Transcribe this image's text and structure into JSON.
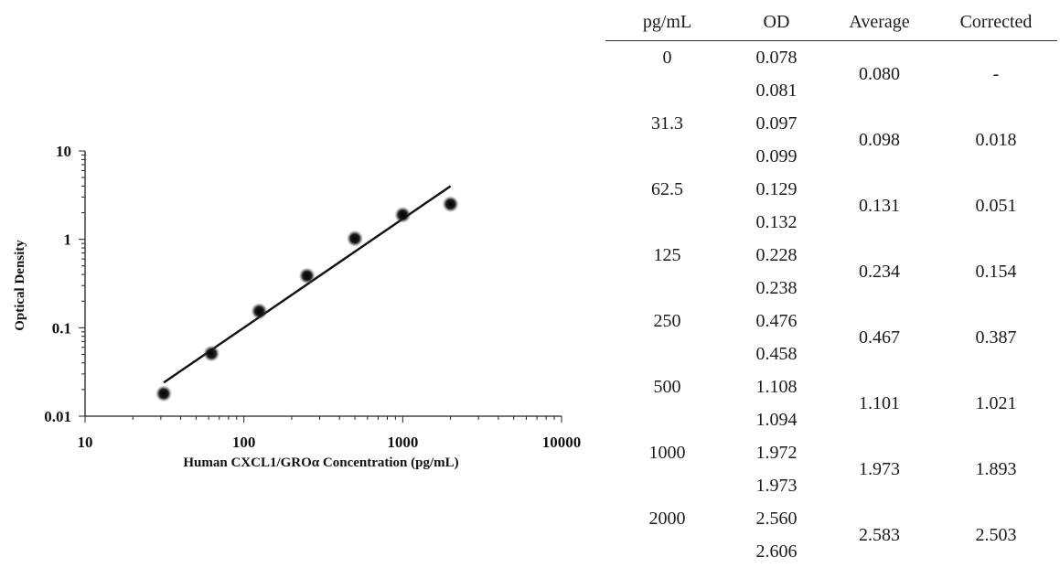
{
  "chart_data": {
    "type": "scatter",
    "title": "",
    "xlabel": "Human CXCL1/GROα Concentration (pg/mL)",
    "ylabel": "Optical Density",
    "x_scale": "log",
    "y_scale": "log",
    "xlim": [
      10,
      10000
    ],
    "ylim": [
      0.01,
      10
    ],
    "x_ticks": [
      "10",
      "100",
      "1000",
      "10000"
    ],
    "y_ticks": [
      "0.01",
      "0.1",
      "1",
      "10"
    ],
    "grid": false,
    "legend": "none",
    "series": [
      {
        "kind": "points",
        "x": [
          31.3,
          62.5,
          125,
          250,
          500,
          1000,
          2000
        ],
        "y": [
          0.018,
          0.051,
          0.154,
          0.387,
          1.021,
          1.893,
          2.503
        ]
      },
      {
        "kind": "fit-line",
        "x": [
          31.3,
          2000
        ],
        "y": [
          0.024,
          4.0
        ]
      }
    ],
    "colors": {
      "points": "#111111",
      "line": "#111111"
    }
  },
  "table": {
    "headers": [
      "pg/mL",
      "OD",
      "Average",
      "Corrected"
    ],
    "rows": [
      {
        "conc": "0",
        "od": [
          "0.078",
          "0.081"
        ],
        "average": "0.080",
        "corrected": "-"
      },
      {
        "conc": "31.3",
        "od": [
          "0.097",
          "0.099"
        ],
        "average": "0.098",
        "corrected": "0.018"
      },
      {
        "conc": "62.5",
        "od": [
          "0.129",
          "0.132"
        ],
        "average": "0.131",
        "corrected": "0.051"
      },
      {
        "conc": "125",
        "od": [
          "0.228",
          "0.238"
        ],
        "average": "0.234",
        "corrected": "0.154"
      },
      {
        "conc": "250",
        "od": [
          "0.476",
          "0.458"
        ],
        "average": "0.467",
        "corrected": "0.387"
      },
      {
        "conc": "500",
        "od": [
          "1.108",
          "1.094"
        ],
        "average": "1.101",
        "corrected": "1.021"
      },
      {
        "conc": "1000",
        "od": [
          "1.972",
          "1.973"
        ],
        "average": "1.973",
        "corrected": "1.893"
      },
      {
        "conc": "2000",
        "od": [
          "2.560",
          "2.606"
        ],
        "average": "2.583",
        "corrected": "2.503"
      }
    ]
  }
}
